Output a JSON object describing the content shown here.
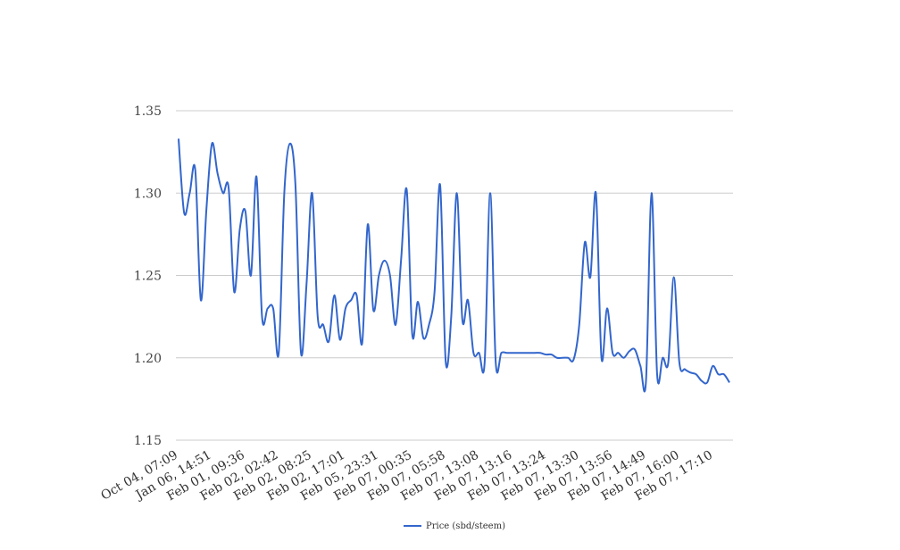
{
  "chart_data": {
    "type": "line",
    "title": "",
    "xlabel": "",
    "ylabel": "",
    "ylim": [
      1.15,
      1.35
    ],
    "yticks": [
      "1.15",
      "1.20",
      "1.25",
      "1.30",
      "1.35"
    ],
    "grid": true,
    "legend_position": "bottom",
    "x_tick_labels": [
      "Oct 04, 07:09",
      "Jan 06, 14:51",
      "Feb 01, 09:36",
      "Feb 02, 02:42",
      "Feb 02, 08:25",
      "Feb 02, 17:01",
      "Feb 05, 23:31",
      "Feb 07, 00:35",
      "Feb 07, 05:58",
      "Feb 07, 13:08",
      "Feb 07, 13:16",
      "Feb 07, 13:24",
      "Feb 07, 13:30",
      "Feb 07, 13:56",
      "Feb 07, 14:49",
      "Feb 07, 16:00",
      "Feb 07, 17:10"
    ],
    "series": [
      {
        "name": "Price (sbd/steem)",
        "color": "#3366cc",
        "values": [
          1.333,
          1.288,
          1.3,
          1.314,
          1.235,
          1.29,
          1.33,
          1.312,
          1.3,
          1.303,
          1.24,
          1.278,
          1.289,
          1.25,
          1.31,
          1.225,
          1.23,
          1.23,
          1.203,
          1.3,
          1.33,
          1.305,
          1.203,
          1.245,
          1.3,
          1.225,
          1.22,
          1.21,
          1.238,
          1.211,
          1.23,
          1.235,
          1.238,
          1.209,
          1.281,
          1.229,
          1.25,
          1.259,
          1.25,
          1.22,
          1.26,
          1.302,
          1.214,
          1.234,
          1.212,
          1.22,
          1.24,
          1.305,
          1.198,
          1.225,
          1.3,
          1.223,
          1.235,
          1.203,
          1.203,
          1.197,
          1.3,
          1.197,
          1.203,
          1.203,
          1.203,
          1.203,
          1.203,
          1.203,
          1.203,
          1.203,
          1.202,
          1.202,
          1.2,
          1.2,
          1.2,
          1.199,
          1.22,
          1.27,
          1.249,
          1.3,
          1.2,
          1.23,
          1.203,
          1.203,
          1.2,
          1.204,
          1.205,
          1.195,
          1.186,
          1.3,
          1.19,
          1.2,
          1.197,
          1.249,
          1.197,
          1.193,
          1.191,
          1.19,
          1.186,
          1.185,
          1.195,
          1.19,
          1.19,
          1.185
        ]
      }
    ]
  }
}
